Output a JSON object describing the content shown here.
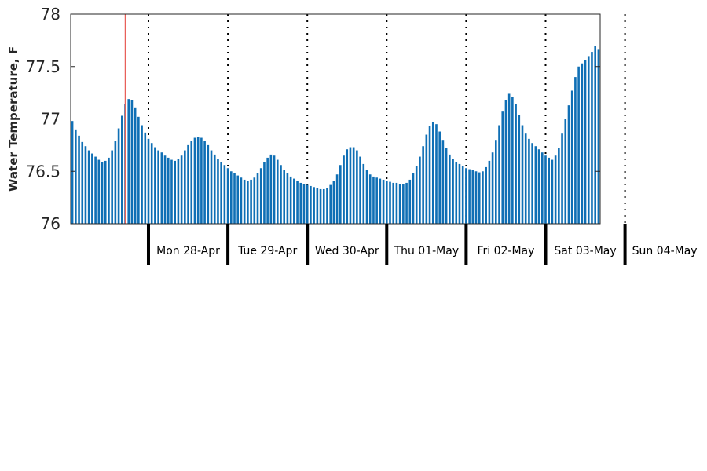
{
  "chart_data": {
    "type": "bar",
    "ylabel": "Water Temperature, F",
    "ylim": [
      76,
      78
    ],
    "yticks": [
      "76",
      "76.5",
      "77",
      "77.5",
      "78"
    ],
    "ytick_values": [
      76,
      76.5,
      77,
      77.5,
      78
    ],
    "day_labels": [
      "Mon 28-Apr",
      "Tue 29-Apr",
      "Wed 30-Apr",
      "Thu 01-May",
      "Fri 02-May",
      "Sat 03-May",
      "Sun 04-May"
    ],
    "interval_hours": 1,
    "marker_hour": 16,
    "values": [
      76.98,
      76.9,
      76.84,
      76.78,
      76.74,
      76.7,
      76.67,
      76.64,
      76.61,
      76.59,
      76.6,
      76.63,
      76.7,
      76.79,
      76.91,
      77.03,
      77.14,
      77.19,
      77.18,
      77.11,
      77.02,
      76.94,
      76.87,
      76.81,
      76.77,
      76.73,
      76.7,
      76.68,
      76.65,
      76.63,
      76.61,
      76.6,
      76.62,
      76.65,
      76.7,
      76.75,
      76.79,
      76.82,
      76.83,
      76.82,
      76.79,
      76.75,
      76.7,
      76.66,
      76.62,
      76.59,
      76.56,
      76.53,
      76.5,
      76.48,
      76.46,
      76.44,
      76.42,
      76.41,
      76.42,
      76.44,
      76.48,
      76.53,
      76.59,
      76.63,
      76.66,
      76.65,
      76.61,
      76.56,
      76.51,
      76.48,
      76.45,
      76.43,
      76.41,
      76.39,
      76.38,
      76.37,
      76.36,
      76.35,
      76.34,
      76.33,
      76.33,
      76.34,
      76.37,
      76.41,
      76.47,
      76.56,
      76.65,
      76.71,
      76.73,
      76.73,
      76.7,
      76.64,
      76.57,
      76.51,
      76.47,
      76.45,
      76.44,
      76.43,
      76.42,
      76.41,
      76.4,
      76.39,
      76.39,
      76.38,
      76.38,
      76.39,
      76.42,
      76.48,
      76.55,
      76.64,
      76.74,
      76.85,
      76.93,
      76.97,
      76.95,
      76.88,
      76.8,
      76.72,
      76.66,
      76.62,
      76.59,
      76.57,
      76.55,
      76.53,
      76.52,
      76.51,
      76.5,
      76.49,
      76.5,
      76.54,
      76.6,
      76.68,
      76.8,
      76.94,
      77.07,
      77.18,
      77.24,
      77.21,
      77.14,
      77.04,
      76.94,
      76.86,
      76.81,
      76.77,
      76.74,
      76.71,
      76.68,
      76.65,
      76.63,
      76.61,
      76.65,
      76.72,
      76.86,
      77.0,
      77.13,
      77.27,
      77.4,
      77.5,
      77.53,
      77.56,
      77.6,
      77.64,
      77.7,
      77.66
    ]
  }
}
